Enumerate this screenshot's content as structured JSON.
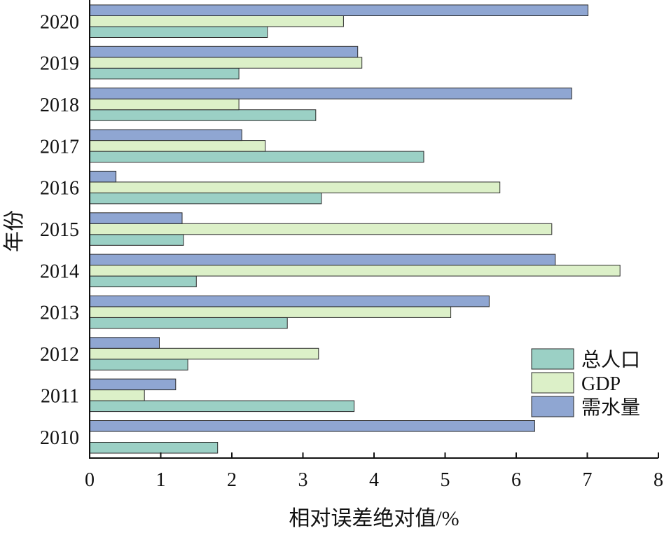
{
  "chart_data": {
    "type": "bar",
    "orientation": "horizontal",
    "categories": [
      "2010",
      "2011",
      "2012",
      "2013",
      "2014",
      "2015",
      "2016",
      "2017",
      "2018",
      "2019",
      "2020"
    ],
    "series": [
      {
        "name": "总人口",
        "color": "#9bd0c5",
        "values": [
          1.8,
          3.72,
          1.38,
          2.78,
          1.5,
          1.32,
          3.26,
          4.7,
          3.18,
          2.1,
          2.5
        ]
      },
      {
        "name": "GDP",
        "color": "#dcf0c8",
        "values": [
          0,
          0.77,
          3.22,
          5.08,
          7.46,
          6.5,
          5.77,
          2.47,
          2.1,
          3.83,
          3.57
        ]
      },
      {
        "name": "需水量",
        "color": "#8fa6d2",
        "values": [
          6.26,
          1.21,
          0.98,
          5.62,
          6.55,
          1.3,
          0.37,
          2.14,
          6.78,
          3.77,
          7.01
        ]
      }
    ],
    "xlabel": "相对误差绝对值/%",
    "ylabel": "年份",
    "xlim": [
      0,
      8
    ],
    "xticks": [
      "0",
      "1",
      "2",
      "3",
      "4",
      "5",
      "6",
      "7",
      "8"
    ],
    "grid": false,
    "legend_position": "bottom-right"
  }
}
